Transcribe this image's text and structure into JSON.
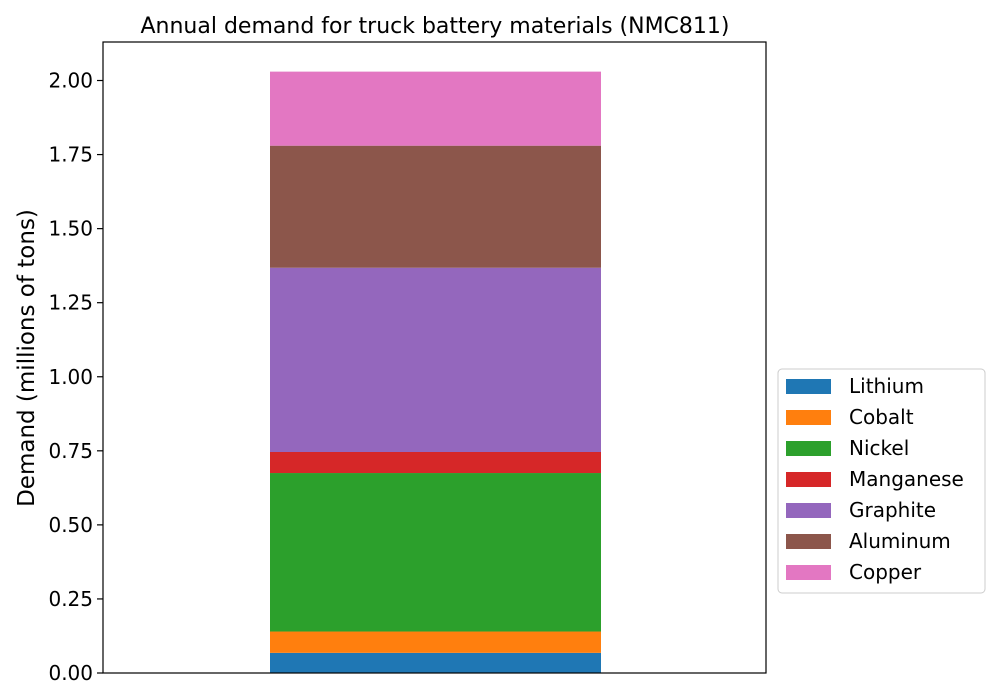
{
  "chart_data": {
    "type": "bar",
    "stacked": true,
    "title": "Annual demand for truck battery materials (NMC811)",
    "xlabel": "",
    "ylabel": "Demand (millions of tons)",
    "categories": [
      ""
    ],
    "ylim": [
      0,
      2.13
    ],
    "yticks": [
      "0.00",
      "0.25",
      "0.50",
      "0.75",
      "1.00",
      "1.25",
      "1.50",
      "1.75",
      "2.00"
    ],
    "grid": false,
    "legend_position": "center-right-outside",
    "series": [
      {
        "name": "Lithium",
        "values": [
          0.068
        ],
        "color": "#1f77b4"
      },
      {
        "name": "Cobalt",
        "values": [
          0.072
        ],
        "color": "#ff7f0e"
      },
      {
        "name": "Nickel",
        "values": [
          0.535
        ],
        "color": "#2ca02c"
      },
      {
        "name": "Manganese",
        "values": [
          0.071
        ],
        "color": "#d62728"
      },
      {
        "name": "Graphite",
        "values": [
          0.622
        ],
        "color": "#9467bd"
      },
      {
        "name": "Aluminum",
        "values": [
          0.412
        ],
        "color": "#8c564b"
      },
      {
        "name": "Copper",
        "values": [
          0.25
        ],
        "color": "#e377c2"
      }
    ]
  }
}
